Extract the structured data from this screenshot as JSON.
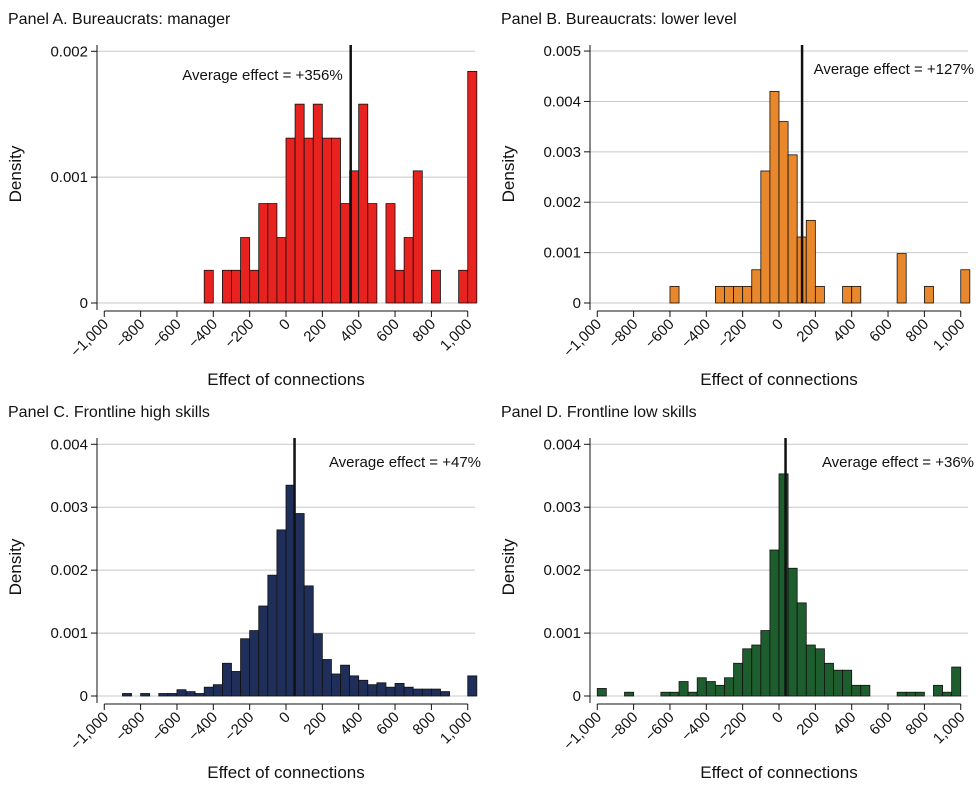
{
  "chart_data": [
    {
      "type": "histogram",
      "title": "Panel A. Bureaucrats: manager",
      "xlabel": "Effect of connections",
      "ylabel": "Density",
      "color": "#e8221f",
      "grid": true,
      "average": 356,
      "annotation": "Average effect = +356%",
      "bins": [
        -450,
        -400,
        -350,
        -300,
        -250,
        -200,
        -150,
        -100,
        -50,
        0,
        50,
        100,
        150,
        200,
        250,
        300,
        350,
        400,
        450,
        500,
        550,
        600,
        650,
        700,
        750,
        800,
        850,
        900,
        950,
        1000,
        1050
      ],
      "values": [
        0.00026,
        0,
        0.00026,
        0.00026,
        0.00052,
        0.00026,
        0.00079,
        0.00079,
        0.00052,
        0.00131,
        0.00158,
        0.00131,
        0.00158,
        0.00131,
        0.00131,
        0.00079,
        0.00105,
        0.00158,
        0.00079,
        0,
        0.00079,
        0.00026,
        0.00052,
        0.00105,
        0,
        0.00026,
        0,
        0,
        0.00026,
        0.00184
      ],
      "xlim": [
        -1040,
        1040
      ],
      "ylim": [
        0,
        0.00205
      ],
      "xticks": [
        {
          "value": -1000,
          "label": "−1,000"
        },
        {
          "value": -800,
          "label": "−800"
        },
        {
          "value": -600,
          "label": "−600"
        },
        {
          "value": -400,
          "label": "−400"
        },
        {
          "value": -200,
          "label": "−200"
        },
        0,
        200,
        400,
        600,
        800,
        {
          "value": 1000,
          "label": "1,000"
        }
      ],
      "yticks": [
        0,
        0.001,
        0.002
      ]
    },
    {
      "type": "histogram",
      "title": "Panel B. Bureaucrats: lower level",
      "xlabel": "Effect of connections",
      "ylabel": "Density",
      "color": "#e8872b",
      "grid": true,
      "average": 127,
      "annotation": "Average effect = +127%",
      "bins": [
        -600,
        -550,
        -500,
        -450,
        -400,
        -350,
        -300,
        -250,
        -200,
        -150,
        -100,
        -50,
        0,
        50,
        100,
        150,
        200,
        250,
        300,
        350,
        400,
        450,
        500,
        550,
        600,
        650,
        700,
        750,
        800,
        850,
        900,
        950,
        1000,
        1050
      ],
      "values": [
        0.00033,
        0,
        0,
        0,
        0,
        0.00033,
        0.00033,
        0.00033,
        0.00033,
        0.00066,
        0.00262,
        0.0042,
        0.0036,
        0.00294,
        0.00131,
        0.00164,
        0.00033,
        0,
        0,
        0.00033,
        0.00033,
        0,
        0,
        0,
        0,
        0.00098,
        0,
        0,
        0.00033,
        0,
        0,
        0,
        0.00066
      ],
      "xlim": [
        -1040,
        1040
      ],
      "ylim": [
        0,
        0.00512
      ],
      "xticks": [
        {
          "value": -1000,
          "label": "−1,000"
        },
        {
          "value": -800,
          "label": "−800"
        },
        {
          "value": -600,
          "label": "−600"
        },
        {
          "value": -400,
          "label": "−400"
        },
        {
          "value": -200,
          "label": "−200"
        },
        0,
        200,
        400,
        600,
        800,
        {
          "value": 1000,
          "label": "1,000"
        }
      ],
      "yticks": [
        0,
        0.001,
        0.002,
        0.003,
        0.004,
        0.005
      ]
    },
    {
      "type": "histogram",
      "title": "Panel C. Frontline high skills",
      "xlabel": "Effect of connections",
      "ylabel": "Density",
      "color": "#1f2f5a",
      "grid": true,
      "average": 47,
      "annotation": "Average effect = +47%",
      "bins": [
        -900,
        -850,
        -800,
        -750,
        -700,
        -650,
        -600,
        -550,
        -500,
        -450,
        -400,
        -350,
        -300,
        -250,
        -200,
        -150,
        -100,
        -50,
        0,
        50,
        100,
        150,
        200,
        250,
        300,
        350,
        400,
        450,
        500,
        550,
        600,
        650,
        700,
        750,
        800,
        850,
        900,
        950,
        1000,
        1050
      ],
      "values": [
        4e-05,
        0,
        4e-05,
        0,
        4e-05,
        4e-05,
        0.0001,
        7e-05,
        4e-05,
        0.00014,
        0.00018,
        0.00052,
        0.00039,
        0.00091,
        0.00104,
        0.00143,
        0.00192,
        0.00264,
        0.00335,
        0.0029,
        0.00175,
        0.00099,
        0.00058,
        0.00035,
        0.00049,
        0.00032,
        0.00025,
        0.00018,
        0.00021,
        0.00014,
        0.0002,
        0.00014,
        0.00011,
        0.00011,
        0.00011,
        7e-05,
        0,
        0,
        0.00032
      ],
      "xlim": [
        -1040,
        1040
      ],
      "ylim": [
        0,
        0.0041
      ],
      "xticks": [
        {
          "value": -1000,
          "label": "−1,000"
        },
        {
          "value": -800,
          "label": "−800"
        },
        {
          "value": -600,
          "label": "−600"
        },
        {
          "value": -400,
          "label": "−400"
        },
        {
          "value": -200,
          "label": "−200"
        },
        0,
        200,
        400,
        600,
        800,
        {
          "value": 1000,
          "label": "1,000"
        }
      ],
      "yticks": [
        0,
        0.001,
        0.002,
        0.003,
        0.004
      ]
    },
    {
      "type": "histogram",
      "title": "Panel D. Frontline low skills",
      "xlabel": "Effect of connections",
      "ylabel": "Density",
      "color": "#1e5e2e",
      "grid": true,
      "average": 36,
      "annotation": "Average effect = +36%",
      "bins": [
        -1000,
        -950,
        -900,
        -850,
        -800,
        -750,
        -700,
        -650,
        -600,
        -550,
        -500,
        -450,
        -400,
        -350,
        -300,
        -250,
        -200,
        -150,
        -100,
        -50,
        0,
        50,
        100,
        150,
        200,
        250,
        300,
        350,
        400,
        450,
        500,
        550,
        600,
        650,
        700,
        750,
        800,
        850,
        900,
        950,
        1000
      ],
      "values": [
        0.00012,
        0,
        0,
        6e-05,
        0,
        0,
        0,
        6e-05,
        6e-05,
        0.00023,
        6e-05,
        0.00029,
        0.00023,
        0.00017,
        0.00029,
        0.00052,
        0.00075,
        0.00081,
        0.00104,
        0.00232,
        0.00353,
        0.00203,
        0.00148,
        0.00081,
        0.00075,
        0.00052,
        0.00041,
        0.00041,
        0.00017,
        0.00017,
        0,
        0,
        0,
        6e-05,
        6e-05,
        6e-05,
        0,
        0.00017,
        6e-05,
        0.00046
      ],
      "xlim": [
        -1040,
        1040
      ],
      "ylim": [
        0,
        0.0041
      ],
      "xticks": [
        {
          "value": -1000,
          "label": "−1,000"
        },
        {
          "value": -800,
          "label": "−800"
        },
        {
          "value": -600,
          "label": "−600"
        },
        {
          "value": -400,
          "label": "−400"
        },
        {
          "value": -200,
          "label": "−200"
        },
        0,
        200,
        400,
        600,
        800,
        {
          "value": 1000,
          "label": "1,000"
        }
      ],
      "yticks": [
        0,
        0.001,
        0.002,
        0.003,
        0.004
      ]
    }
  ]
}
